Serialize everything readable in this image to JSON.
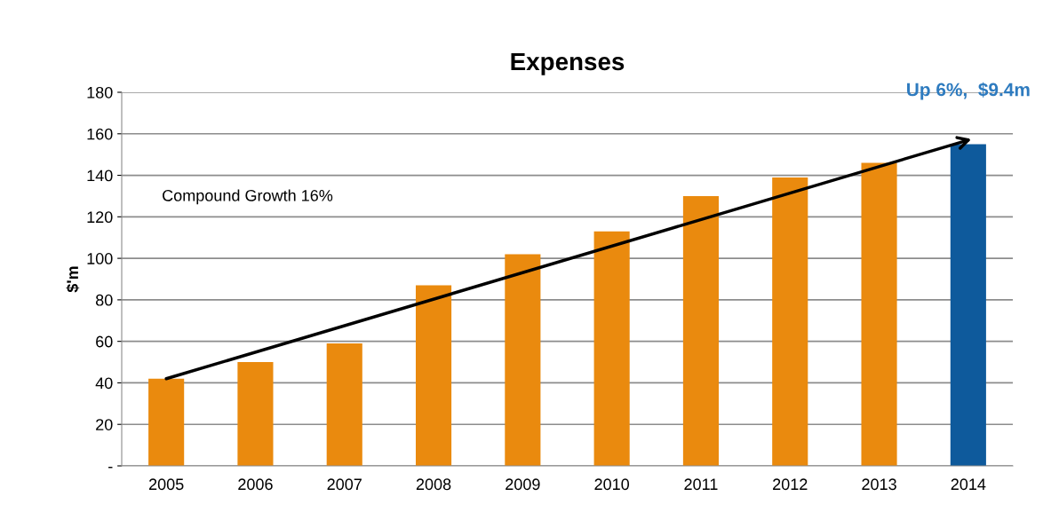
{
  "chart_data": {
    "type": "bar",
    "title": "Expenses",
    "ylabel": "$'m",
    "categories": [
      "2005",
      "2006",
      "2007",
      "2008",
      "2009",
      "2010",
      "2011",
      "2012",
      "2013",
      "2014"
    ],
    "series": [
      {
        "values": [
          42,
          50,
          59,
          87,
          102,
          113,
          130,
          139,
          146,
          155
        ],
        "colors": [
          "#ea8a0e",
          "#ea8a0e",
          "#ea8a0e",
          "#ea8a0e",
          "#ea8a0e",
          "#ea8a0e",
          "#ea8a0e",
          "#ea8a0e",
          "#ea8a0e",
          "#0e5a9c"
        ]
      },
      {
        "type": "line",
        "values": [
          42,
          null,
          null,
          null,
          null,
          null,
          null,
          null,
          null,
          157
        ],
        "color": "#000000"
      }
    ],
    "ylim": [
      0,
      180
    ],
    "yticks": [
      {
        "value": 0,
        "label": "-"
      },
      20,
      40,
      60,
      80,
      100,
      120,
      140,
      160,
      180
    ],
    "grid": "y",
    "annotations": [
      "Compound Growth 16%",
      {
        "text": "Up 6%,  $9.4m",
        "x": "2014",
        "y": 155
      }
    ]
  }
}
